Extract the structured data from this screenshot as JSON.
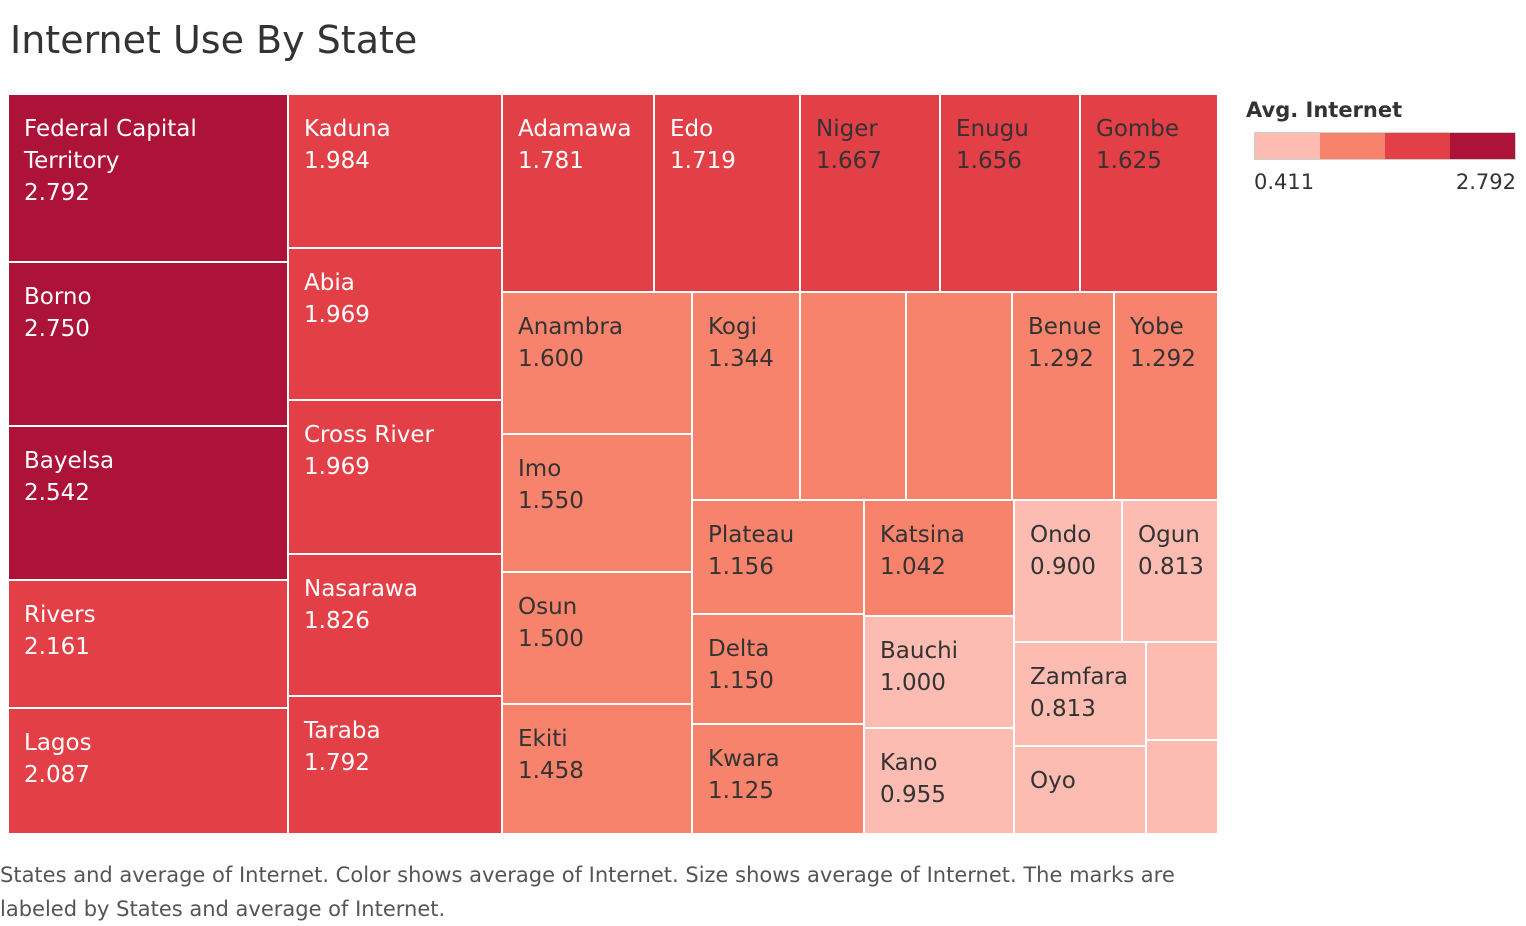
{
  "title": "Internet Use By State",
  "legend": {
    "title": "Avg. Internet",
    "min_label": "0.411",
    "max_label": "2.792",
    "steps": [
      "#fdbcb1",
      "#f8836c",
      "#e33f46",
      "#ad1238"
    ]
  },
  "caption": "States and average of Internet.  Color shows average of Internet.  Size shows average of Internet.  The marks are labeled by States and average of Internet.",
  "chart_data": {
    "type": "treemap",
    "title": "Internet Use By State",
    "color_range": [
      0.411,
      2.792
    ],
    "items": [
      {
        "name": "Federal Capital\nTerritory",
        "value": 2.792,
        "label": "2.792"
      },
      {
        "name": "Borno",
        "value": 2.75,
        "label": "2.750"
      },
      {
        "name": "Bayelsa",
        "value": 2.542,
        "label": "2.542"
      },
      {
        "name": "Rivers",
        "value": 2.161,
        "label": "2.161"
      },
      {
        "name": "Lagos",
        "value": 2.087,
        "label": "2.087"
      },
      {
        "name": "Kaduna",
        "value": 1.984,
        "label": "1.984"
      },
      {
        "name": "Abia",
        "value": 1.969,
        "label": "1.969"
      },
      {
        "name": "Cross River",
        "value": 1.969,
        "label": "1.969"
      },
      {
        "name": "Nasarawa",
        "value": 1.826,
        "label": "1.826"
      },
      {
        "name": "Taraba",
        "value": 1.792,
        "label": "1.792"
      },
      {
        "name": "Adamawa",
        "value": 1.781,
        "label": "1.781"
      },
      {
        "name": "Edo",
        "value": 1.719,
        "label": "1.719"
      },
      {
        "name": "Niger",
        "value": 1.667,
        "label": "1.667"
      },
      {
        "name": "Enugu",
        "value": 1.656,
        "label": "1.656"
      },
      {
        "name": "Gombe",
        "value": 1.625,
        "label": "1.625"
      },
      {
        "name": "Anambra",
        "value": 1.6,
        "label": "1.600"
      },
      {
        "name": "Imo",
        "value": 1.55,
        "label": "1.550"
      },
      {
        "name": "Osun",
        "value": 1.5,
        "label": "1.500"
      },
      {
        "name": "Ekiti",
        "value": 1.458,
        "label": "1.458"
      },
      {
        "name": "Kogi",
        "value": 1.344,
        "label": "1.344"
      },
      {
        "name": "",
        "value": 1.33,
        "label": ""
      },
      {
        "name": "",
        "value": 1.31,
        "label": ""
      },
      {
        "name": "Benue",
        "value": 1.292,
        "label": "1.292"
      },
      {
        "name": "Yobe",
        "value": 1.292,
        "label": "1.292"
      },
      {
        "name": "Plateau",
        "value": 1.156,
        "label": "1.156"
      },
      {
        "name": "Katsina",
        "value": 1.042,
        "label": "1.042"
      },
      {
        "name": "Delta",
        "value": 1.15,
        "label": "1.150"
      },
      {
        "name": "Kwara",
        "value": 1.125,
        "label": "1.125"
      },
      {
        "name": "Bauchi",
        "value": 1.0,
        "label": "1.000"
      },
      {
        "name": "Kano",
        "value": 0.955,
        "label": "0.955"
      },
      {
        "name": "Ondo",
        "value": 0.9,
        "label": "0.900"
      },
      {
        "name": "Ogun",
        "value": 0.813,
        "label": "0.813"
      },
      {
        "name": "Zamfara",
        "value": 0.813,
        "label": "0.813"
      },
      {
        "name": "Oyo",
        "value": 0.75,
        "label": ""
      },
      {
        "name": "",
        "value": 0.7,
        "label": ""
      },
      {
        "name": "",
        "value": 0.65,
        "label": ""
      }
    ]
  }
}
